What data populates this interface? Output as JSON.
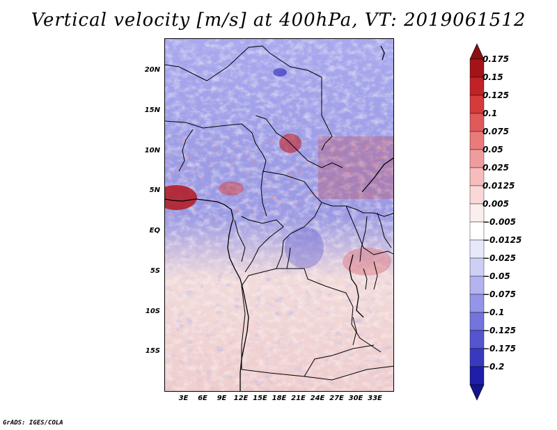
{
  "title": "Vertical velocity [m/s] at 400hPa, VT: 2019061512",
  "credit": "GrADS: IGES/COLA",
  "map": {
    "lat_min": -20,
    "lat_max": 24,
    "lon_min": 0,
    "lon_max": 36,
    "lat_ticks": [
      {
        "value": 20,
        "label": "20N"
      },
      {
        "value": 15,
        "label": "15N"
      },
      {
        "value": 10,
        "label": "10N"
      },
      {
        "value": 5,
        "label": "5N"
      },
      {
        "value": 0,
        "label": "EQ"
      },
      {
        "value": -5,
        "label": "5S"
      },
      {
        "value": -10,
        "label": "10S"
      },
      {
        "value": -15,
        "label": "15S"
      }
    ],
    "lon_ticks": [
      {
        "value": 3,
        "label": "3E"
      },
      {
        "value": 6,
        "label": "6E"
      },
      {
        "value": 9,
        "label": "9E"
      },
      {
        "value": 12,
        "label": "12E"
      },
      {
        "value": 15,
        "label": "15E"
      },
      {
        "value": 18,
        "label": "18E"
      },
      {
        "value": 21,
        "label": "21E"
      },
      {
        "value": 24,
        "label": "24E"
      },
      {
        "value": 27,
        "label": "27E"
      },
      {
        "value": 30,
        "label": "30E"
      },
      {
        "value": 33,
        "label": "33E"
      }
    ]
  },
  "colorbar": {
    "levels": [
      {
        "label": "0.175",
        "color": "#a31419"
      },
      {
        "label": "0.15",
        "color": "#c02226"
      },
      {
        "label": "0.125",
        "color": "#d43b3b"
      },
      {
        "label": "0.1",
        "color": "#e05a5a"
      },
      {
        "label": "0.075",
        "color": "#e97b7b"
      },
      {
        "label": "0.05",
        "color": "#f19c9c"
      },
      {
        "label": "0.025",
        "color": "#f7bcbc"
      },
      {
        "label": "0.0125",
        "color": "#fbd8d8"
      },
      {
        "label": "0.005",
        "color": "#fdeeee"
      },
      {
        "label": "−0.005",
        "color": "#ffffff"
      },
      {
        "label": "−0.0125",
        "color": "#e8e8fb"
      },
      {
        "label": "−0.025",
        "color": "#cfcff6"
      },
      {
        "label": "−0.05",
        "color": "#b3b3f0"
      },
      {
        "label": "−0.075",
        "color": "#9494e8"
      },
      {
        "label": "−0.1",
        "color": "#7474dd"
      },
      {
        "label": "−0.125",
        "color": "#5555cf"
      },
      {
        "label": "−0.175",
        "color": "#3939bf"
      },
      {
        "label": "−0.2",
        "color": "#1e1ea8"
      }
    ],
    "top_color": "#8c0d12",
    "bottom_color": "#14148c"
  }
}
